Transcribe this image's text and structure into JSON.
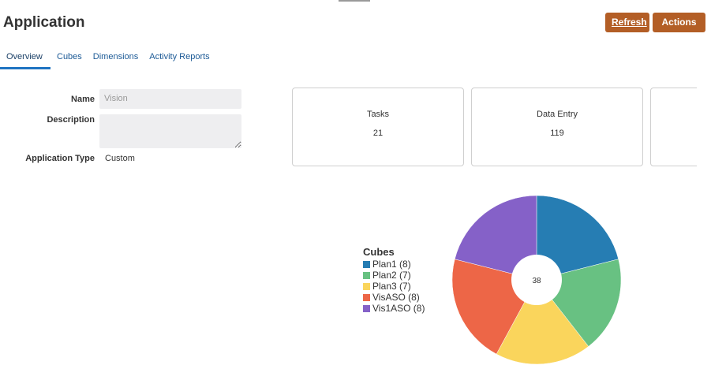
{
  "header": {
    "title": "Application",
    "refresh_label": "Refresh",
    "actions_label": "Actions"
  },
  "tabs": [
    {
      "label": "Overview",
      "active": true
    },
    {
      "label": "Cubes",
      "active": false
    },
    {
      "label": "Dimensions",
      "active": false
    },
    {
      "label": "Activity Reports",
      "active": false
    }
  ],
  "form": {
    "name_label": "Name",
    "name_value": "Vision",
    "description_label": "Description",
    "description_value": "",
    "app_type_label": "Application Type",
    "app_type_value": "Custom"
  },
  "cards": [
    {
      "title": "Tasks",
      "value": "21"
    },
    {
      "title": "Data Entry",
      "value": "119"
    },
    {
      "title": "",
      "value": ""
    }
  ],
  "legend": {
    "title": "Cubes",
    "items": [
      {
        "label": "Plan1 (8)",
        "color": "#267db3"
      },
      {
        "label": "Plan2 (7)",
        "color": "#68c182"
      },
      {
        "label": "Plan3 (7)",
        "color": "#fad55c"
      },
      {
        "label": "VisASO (8)",
        "color": "#ed6647"
      },
      {
        "label": "Vis1ASO (8)",
        "color": "#8561c8"
      }
    ]
  },
  "chart_data": {
    "type": "pie",
    "title": "Cubes",
    "categories": [
      "Plan1",
      "Plan2",
      "Plan3",
      "VisASO",
      "Vis1ASO"
    ],
    "values": [
      8,
      7,
      7,
      8,
      8
    ],
    "colors": [
      "#267db3",
      "#68c182",
      "#fad55c",
      "#ed6647",
      "#8561c8"
    ],
    "center_label": "38",
    "donut": true,
    "legend_position": "left"
  }
}
